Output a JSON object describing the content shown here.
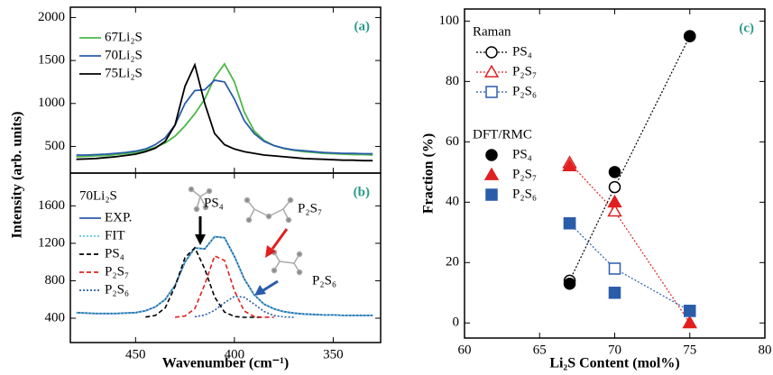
{
  "chart_data": [
    {
      "type": "line",
      "panel_label": "(a)",
      "ylabel": "Intensity (arb. units)",
      "xlim": [
        483,
        326
      ],
      "xticks": [
        450,
        400,
        350
      ],
      "ylim": [
        190,
        2120
      ],
      "yticks": [
        500,
        1000,
        1500,
        2000
      ],
      "x": [
        480,
        475,
        470,
        465,
        460,
        455,
        450,
        445,
        440,
        435,
        430,
        425,
        420,
        415,
        410,
        405,
        400,
        395,
        390,
        385,
        380,
        375,
        370,
        365,
        360,
        355,
        350,
        345,
        340,
        335,
        330
      ],
      "series": [
        {
          "name": "67Li₂S",
          "color": "#4cb848",
          "style": "solid",
          "values": [
            380,
            385,
            390,
            395,
            405,
            415,
            430,
            455,
            490,
            540,
            620,
            740,
            880,
            1050,
            1300,
            1460,
            1250,
            900,
            680,
            570,
            510,
            475,
            455,
            440,
            430,
            420,
            415,
            410,
            405,
            405,
            400
          ]
        },
        {
          "name": "70Li₂S",
          "color": "#2a5caa",
          "style": "solid",
          "values": [
            400,
            400,
            405,
            410,
            420,
            430,
            445,
            470,
            520,
            600,
            750,
            1000,
            1150,
            1160,
            1270,
            1250,
            1050,
            800,
            650,
            560,
            510,
            480,
            460,
            450,
            440,
            430,
            425,
            420,
            420,
            415,
            415
          ]
        },
        {
          "name": "75Li₂S",
          "color": "#000000",
          "style": "solid",
          "values": [
            350,
            355,
            360,
            370,
            380,
            395,
            410,
            440,
            480,
            560,
            750,
            1200,
            1450,
            1000,
            650,
            520,
            470,
            440,
            420,
            400,
            390,
            380,
            370,
            360,
            355,
            350,
            345,
            340,
            340,
            335,
            335
          ]
        }
      ]
    },
    {
      "type": "line",
      "panel_label": "(b)",
      "xlabel": "Wavenumber (cm⁻¹)",
      "legend_title": "70Li₂S",
      "xlim": [
        483,
        326
      ],
      "xticks": [
        450,
        400,
        350
      ],
      "ylim": [
        140,
        1950
      ],
      "yticks": [
        400,
        800,
        1200,
        1600
      ],
      "x": [
        480,
        475,
        470,
        465,
        460,
        455,
        450,
        445,
        440,
        435,
        430,
        425,
        420,
        415,
        410,
        405,
        400,
        395,
        390,
        385,
        380,
        375,
        370,
        365,
        360,
        355,
        350,
        345,
        340,
        335,
        330
      ],
      "series": [
        {
          "name": "EXP.",
          "color": "#2a5caa",
          "style": "solid",
          "values": [
            460,
            455,
            450,
            450,
            450,
            455,
            460,
            480,
            520,
            600,
            750,
            1000,
            1150,
            1140,
            1270,
            1260,
            1060,
            820,
            650,
            550,
            500,
            470,
            455,
            445,
            440,
            435,
            435,
            430,
            430,
            430,
            430
          ]
        },
        {
          "name": "FIT",
          "color": "#5ec8d8",
          "style": "dotted",
          "values": [
            458,
            455,
            452,
            450,
            450,
            453,
            460,
            478,
            522,
            598,
            752,
            1002,
            1148,
            1145,
            1268,
            1258,
            1062,
            818,
            652,
            548,
            500,
            470,
            455,
            445,
            440,
            436,
            434,
            431,
            430,
            430,
            430
          ]
        },
        {
          "name": "PS₄",
          "color": "#000000",
          "style": "dashed",
          "values": [
            null,
            null,
            null,
            null,
            null,
            null,
            null,
            412,
            429,
            511,
            740,
            1047,
            1152,
            927,
            627,
            465,
            418,
            410,
            410,
            410,
            null,
            null,
            null,
            null,
            null,
            null,
            null,
            null,
            null,
            null,
            null
          ]
        },
        {
          "name": "P₂S₇",
          "color": "#e02020",
          "style": "dashed",
          "values": [
            null,
            null,
            null,
            null,
            null,
            null,
            null,
            null,
            null,
            null,
            411,
            423,
            503,
            760,
            1065,
            1017,
            693,
            476,
            418,
            411,
            410,
            null,
            null,
            null,
            null,
            null,
            null,
            null,
            null,
            null,
            null
          ]
        },
        {
          "name": "P₂S₆",
          "color": "#2a5caa",
          "style": "dotted",
          "values": [
            null,
            null,
            null,
            null,
            null,
            null,
            null,
            null,
            null,
            null,
            null,
            null,
            415,
            434,
            484,
            566,
            633,
            624,
            550,
            472,
            428,
            414,
            410,
            null,
            null,
            null,
            null,
            null,
            null,
            null,
            null
          ]
        }
      ],
      "annotations": [
        "PS₄",
        "P₂S₇",
        "P₂S₆"
      ]
    },
    {
      "type": "scatter",
      "panel_label": "(c)",
      "xlabel": "Li₂S Content (mol%)",
      "ylabel": "Fraction (%)",
      "xlim": [
        60,
        80
      ],
      "xticks": [
        60,
        65,
        70,
        75,
        80
      ],
      "ylim": [
        -5,
        104
      ],
      "yticks": [
        0,
        20,
        40,
        60,
        80,
        100
      ],
      "x": [
        67,
        70,
        75
      ],
      "series_groups": [
        {
          "name": "Raman",
          "series": [
            {
              "name": "PS₄",
              "color": "#000000",
              "marker": "circle",
              "filled": false,
              "line": true,
              "values": [
                14,
                45,
                95
              ]
            },
            {
              "name": "P₂S₇",
              "color": "#e02020",
              "marker": "triangle",
              "filled": false,
              "line": true,
              "values": [
                53,
                37,
                0
              ]
            },
            {
              "name": "P₂S₆",
              "color": "#2a5caa",
              "marker": "square",
              "filled": false,
              "line": true,
              "values": [
                33,
                18,
                4
              ]
            }
          ]
        },
        {
          "name": "DFT/RMC",
          "series": [
            {
              "name": "PS₄",
              "color": "#000000",
              "marker": "circle",
              "filled": true,
              "line": false,
              "values": [
                13,
                50,
                95
              ]
            },
            {
              "name": "P₂S₇",
              "color": "#e02020",
              "marker": "triangle",
              "filled": true,
              "line": false,
              "values": [
                52,
                40,
                0
              ]
            },
            {
              "name": "P₂S₆",
              "color": "#2a5caa",
              "marker": "square",
              "filled": true,
              "line": false,
              "values": [
                33,
                10,
                4
              ]
            }
          ]
        }
      ]
    }
  ]
}
